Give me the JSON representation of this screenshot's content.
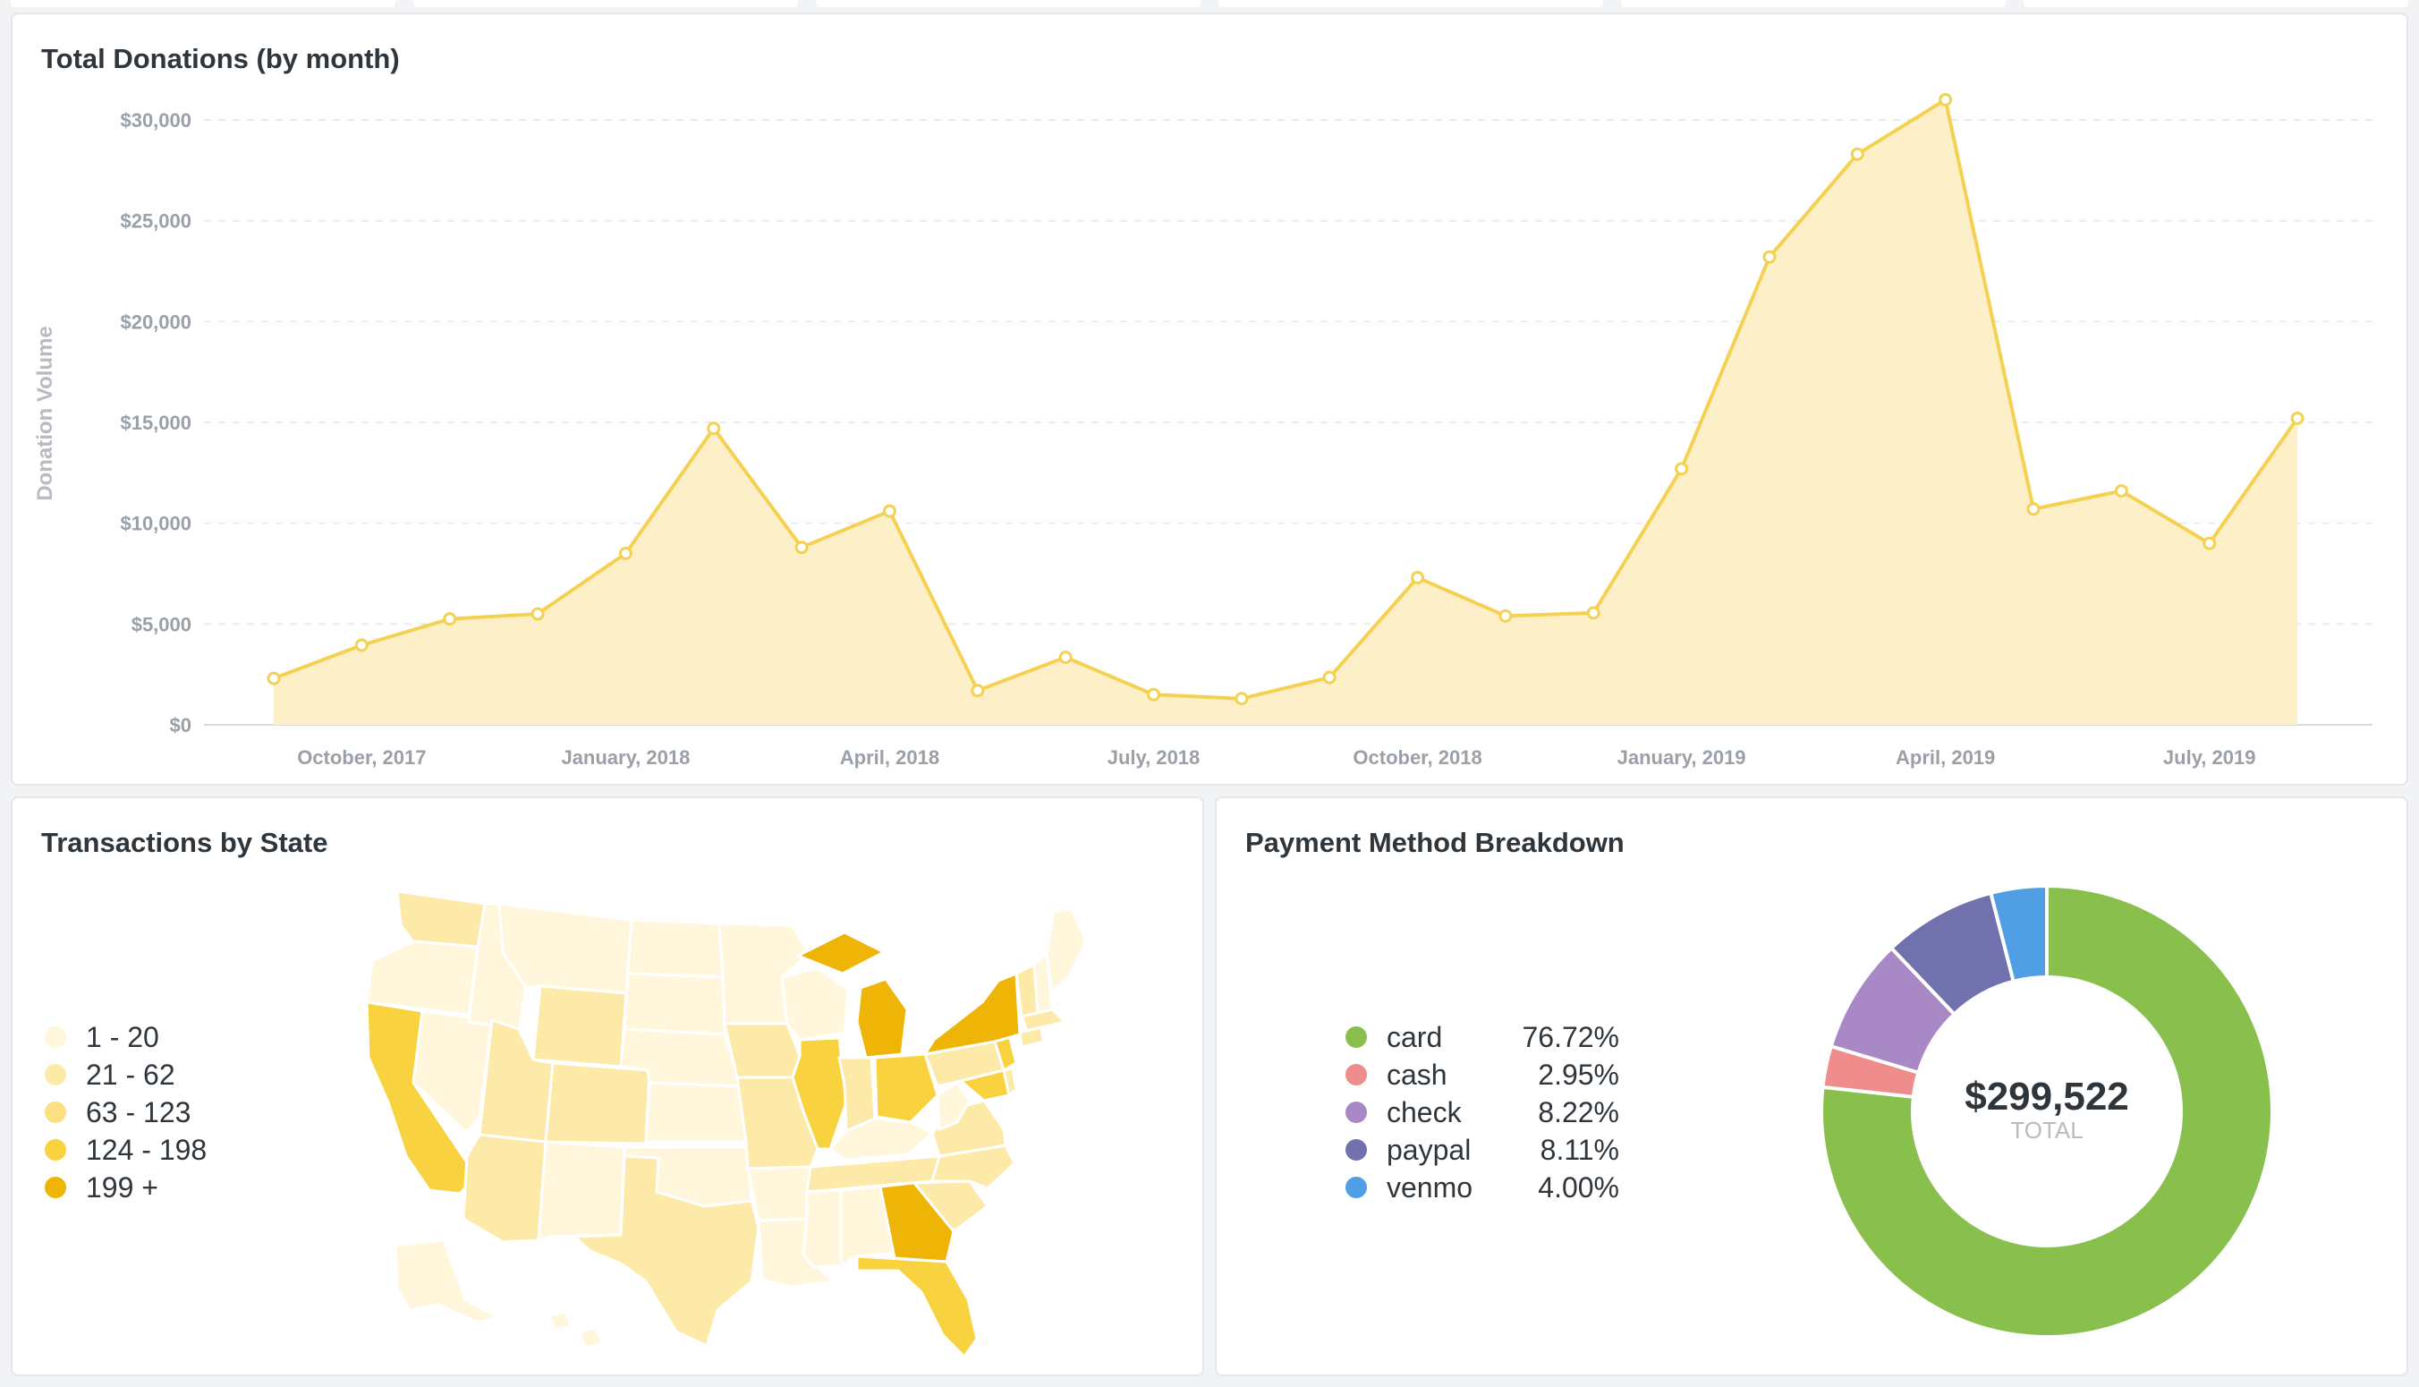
{
  "donations": {
    "title": "Total Donations (by month)",
    "chart_data": {
      "type": "area",
      "title": "Total Donations (by month)",
      "ylabel": "Donation Volume",
      "xlabel": "",
      "ylim": [
        0,
        30000
      ],
      "yticks": [
        0,
        5000,
        10000,
        15000,
        20000,
        25000,
        30000
      ],
      "ytick_labels": [
        "$0",
        "$5,000",
        "$10,000",
        "$15,000",
        "$20,000",
        "$25,000",
        "$30,000"
      ],
      "xtick_labels": [
        "October, 2017",
        "January, 2018",
        "April, 2018",
        "July, 2018",
        "October, 2018",
        "January, 2019",
        "April, 2019",
        "July, 2019"
      ],
      "x": [
        "2017-09",
        "2017-10",
        "2017-11",
        "2017-12",
        "2018-01",
        "2018-02",
        "2018-03",
        "2018-04",
        "2018-05",
        "2018-06",
        "2018-07",
        "2018-08",
        "2018-09",
        "2018-10",
        "2018-11",
        "2018-12",
        "2019-01",
        "2019-02",
        "2019-03",
        "2019-04",
        "2019-05",
        "2019-06",
        "2019-07",
        "2019-08"
      ],
      "series": [
        {
          "values": [
            2300,
            3950,
            5250,
            5500,
            8500,
            14700,
            8800,
            10600,
            1700,
            3350,
            1500,
            1300,
            2350,
            7300,
            5400,
            5550,
            12700,
            23200,
            28300,
            31000,
            10700,
            11600,
            9000,
            15200
          ]
        }
      ],
      "grid": true,
      "colors": {
        "line": "#f5d153",
        "fill": "#fdf0c9"
      }
    }
  },
  "states": {
    "title": "Transactions by State",
    "legend": [
      {
        "label": "1 - 20",
        "color": "#fff6dc"
      },
      {
        "label": "21 - 62",
        "color": "#fde9a8"
      },
      {
        "label": "63 - 123",
        "color": "#fcdf80"
      },
      {
        "label": "124 - 198",
        "color": "#f9d23f"
      },
      {
        "label": "199 +",
        "color": "#eeb507"
      }
    ]
  },
  "payments": {
    "title": "Payment Method Breakdown",
    "total_value": "$299,522",
    "total_label": "TOTAL",
    "chart_data": {
      "type": "pie",
      "categories": [
        "card",
        "cash",
        "check",
        "paypal",
        "venmo"
      ],
      "values": [
        76.72,
        2.95,
        8.22,
        8.11,
        4.0
      ],
      "value_labels": [
        "76.72%",
        "2.95%",
        "8.22%",
        "8.11%",
        "4.00%"
      ],
      "colors": [
        "#88bf4d",
        "#ef8c8c",
        "#a989c5",
        "#7172ad",
        "#509ee3"
      ]
    }
  }
}
